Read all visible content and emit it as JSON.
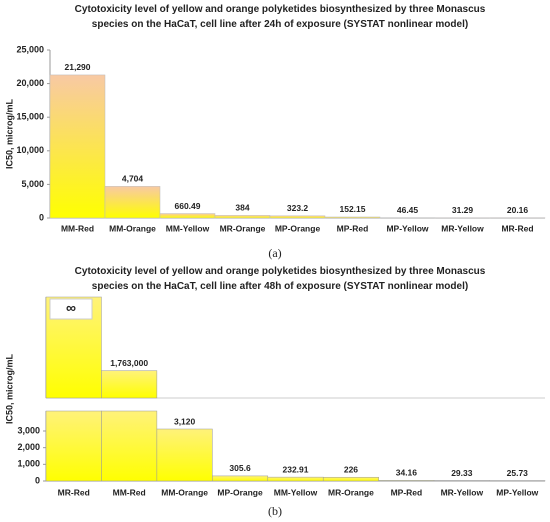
{
  "chart_data": [
    {
      "type": "bar",
      "title": "Cytotoxicity level of yellow and orange polyketides biosynthesized by three Monascus species on the HaCaT, cell line after 24h of exposure (SYSTAT nonlinear model)",
      "y_label": "IC50, microg/mL",
      "caption": "(a)",
      "categories": [
        "MM-Red",
        "MM-Orange",
        "MM-Yellow",
        "MR-Orange",
        "MP-Orange",
        "MP-Red",
        "MP-Yellow",
        "MR-Yellow",
        "MR-Red"
      ],
      "values": [
        21290,
        4704,
        660.49,
        384,
        323.2,
        152.15,
        46.45,
        31.29,
        20.16
      ],
      "value_labels": [
        "21,290",
        "4,704",
        "660.49",
        "384",
        "323.2",
        "152.15",
        "46.45",
        "31.29",
        "20.16"
      ],
      "color": "#ffff00",
      "ylim": [
        0,
        25000
      ],
      "yticks": [
        0,
        {
          "value": 5000,
          "label": "5,000"
        },
        {
          "value": 10000,
          "label": "10,000"
        },
        {
          "value": 15000,
          "label": "15,000"
        },
        {
          "value": 20000,
          "label": "20,000"
        },
        {
          "value": 25000,
          "label": "25,000"
        }
      ]
    },
    {
      "type": "broken_bar",
      "title": "Cytotoxicity level of yellow and orange polyketides biosynthesized by three Monascus species on the HaCaT, cell line after 48h of exposure (SYSTAT nonlinear model)",
      "y_label": "IC50, microg/mL",
      "caption": "(b)",
      "categories": [
        "MR-Red",
        "MM-Red",
        "MM-Orange",
        "MP-Orange",
        "MM-Yellow",
        "MR-Orange",
        "MP-Red",
        "MR-Yellow",
        "MP-Yellow"
      ],
      "values": [
        null,
        1763000,
        3120,
        305.6,
        232.91,
        226,
        34.16,
        29.33,
        25.73
      ],
      "value_labels": [
        "∞",
        "1,763,000",
        "3,120",
        "305.6",
        "232.91",
        "226",
        "34.16",
        "29.33",
        "25.73"
      ],
      "color": "#ffff00",
      "ylim": [
        0,
        4200
      ],
      "yticks": [
        0,
        {
          "value": 1000,
          "label": "1,000"
        },
        {
          "value": 2000,
          "label": "2,000"
        },
        {
          "value": 3000,
          "label": "3,000"
        }
      ],
      "upper_ylim": [
        4200,
        6500000
      ]
    }
  ]
}
